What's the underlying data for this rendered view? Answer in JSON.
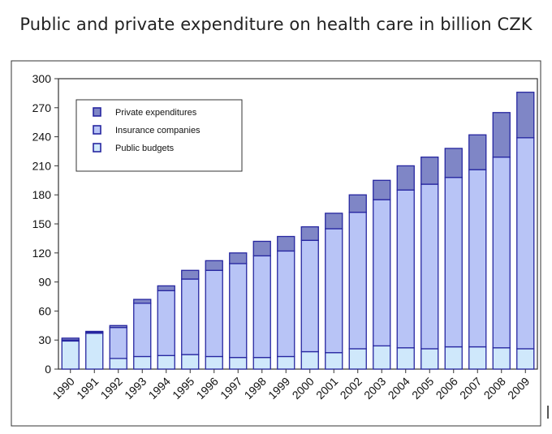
{
  "title": "Public and private expenditure on health care in billion CZK",
  "colors": {
    "public": "#cfe8fb",
    "insurance": "#b8c4f6",
    "private": "#7f86c6",
    "outline": "#2626a0",
    "axis": "#333333",
    "border": "#333333"
  },
  "chart_data": {
    "type": "bar",
    "stacked": true,
    "title": "Public and private expenditure on health care in billion CZK",
    "categories": [
      "1990",
      "1991",
      "1992",
      "1993",
      "1994",
      "1995",
      "1996",
      "1997",
      "1998",
      "1999",
      "2000",
      "2001",
      "2002",
      "2003",
      "2004",
      "2005",
      "2006",
      "2007",
      "2008",
      "2009"
    ],
    "series": [
      {
        "name": "Public budgets",
        "values": [
          29,
          37,
          11,
          13,
          14,
          15,
          13,
          12,
          12,
          13,
          18,
          17,
          21,
          24,
          22,
          21,
          23,
          23,
          22,
          21
        ]
      },
      {
        "name": "Insurance companies",
        "values": [
          1,
          1,
          32,
          55,
          67,
          78,
          89,
          97,
          105,
          109,
          115,
          128,
          141,
          151,
          163,
          170,
          175,
          183,
          197,
          218
        ]
      },
      {
        "name": "Private expenditures",
        "values": [
          2,
          1,
          2,
          4,
          5,
          9,
          10,
          11,
          15,
          15,
          14,
          16,
          18,
          20,
          25,
          28,
          30,
          36,
          46,
          47
        ]
      }
    ],
    "ylim": [
      0,
      300
    ],
    "yticks": [
      0,
      30,
      60,
      90,
      120,
      150,
      180,
      210,
      240,
      270,
      300
    ],
    "legend": [
      "Private expenditures",
      "Insurance companies",
      "Public budgets"
    ],
    "legend_position": "top-left",
    "grid": false
  }
}
